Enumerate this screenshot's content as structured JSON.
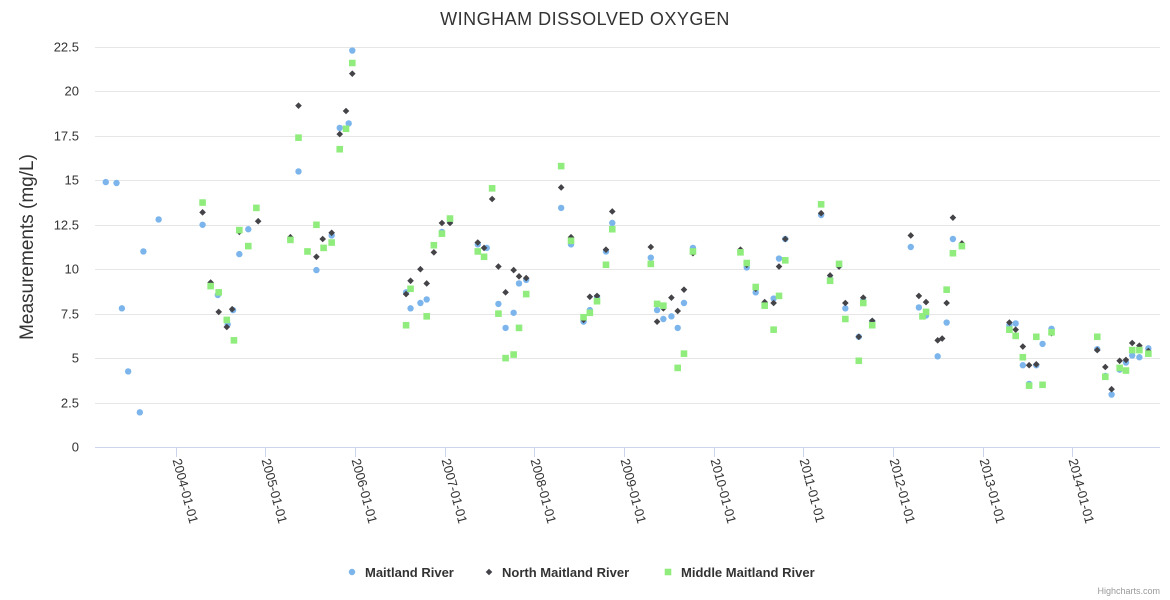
{
  "chart_data": {
    "type": "scatter",
    "title": "WINGHAM DISSOLVED OXYGEN",
    "ylabel": "Measurements (mg/L)",
    "xlabel": "",
    "ylim": [
      0,
      22.5
    ],
    "yticks": [
      0,
      2.5,
      5,
      7.5,
      10,
      12.5,
      15,
      17.5,
      20,
      22.5
    ],
    "ytick_labels": [
      "0",
      "2.5",
      "5",
      "7.5",
      "10",
      "12.5",
      "15",
      "17.5",
      "20",
      "22.5"
    ],
    "xlim": [
      2003.1,
      2014.98
    ],
    "xticks": [
      2004,
      2005,
      2006,
      2007,
      2008,
      2009,
      2010,
      2011,
      2012,
      2013,
      2014
    ],
    "xtick_labels": [
      "2004-01-01",
      "2005-01-01",
      "2006-01-01",
      "2007-01-01",
      "2008-01-01",
      "2009-01-01",
      "2010-01-01",
      "2011-01-01",
      "2012-01-01",
      "2013-01-01",
      "2014-01-01"
    ],
    "grid": true,
    "legend_position": "bottom-center",
    "series": [
      {
        "name": "Maitland River",
        "color": "#7cb5ec",
        "marker": "circle",
        "points": [
          [
            2003.22,
            14.9
          ],
          [
            2003.34,
            14.85
          ],
          [
            2003.4,
            7.8
          ],
          [
            2003.47,
            4.25
          ],
          [
            2003.6,
            1.95
          ],
          [
            2003.64,
            11.0
          ],
          [
            2003.81,
            12.8
          ],
          [
            2004.3,
            12.5
          ],
          [
            2004.47,
            8.55
          ],
          [
            2004.58,
            6.9
          ],
          [
            2004.64,
            7.7
          ],
          [
            2004.71,
            10.85
          ],
          [
            2004.81,
            12.25
          ],
          [
            2005.28,
            11.7
          ],
          [
            2005.37,
            15.5
          ],
          [
            2005.57,
            9.95
          ],
          [
            2005.74,
            11.9
          ],
          [
            2005.83,
            17.95
          ],
          [
            2005.93,
            18.2
          ],
          [
            2005.97,
            22.3
          ],
          [
            2006.57,
            8.7
          ],
          [
            2006.62,
            7.8
          ],
          [
            2006.73,
            8.1
          ],
          [
            2006.8,
            8.3
          ],
          [
            2006.97,
            12.1
          ],
          [
            2007.06,
            12.7
          ],
          [
            2007.37,
            11.4
          ],
          [
            2007.47,
            11.2
          ],
          [
            2007.6,
            8.05
          ],
          [
            2007.68,
            6.7
          ],
          [
            2007.77,
            7.55
          ],
          [
            2007.83,
            9.2
          ],
          [
            2007.91,
            9.4
          ],
          [
            2008.3,
            13.45
          ],
          [
            2008.41,
            11.4
          ],
          [
            2008.55,
            7.05
          ],
          [
            2008.62,
            7.7
          ],
          [
            2008.7,
            8.45
          ],
          [
            2008.8,
            11.0
          ],
          [
            2008.87,
            12.6
          ],
          [
            2009.3,
            10.65
          ],
          [
            2009.37,
            7.7
          ],
          [
            2009.44,
            7.2
          ],
          [
            2009.53,
            7.35
          ],
          [
            2009.6,
            6.7
          ],
          [
            2009.67,
            8.1
          ],
          [
            2009.77,
            11.2
          ],
          [
            2010.3,
            11.0
          ],
          [
            2010.37,
            10.1
          ],
          [
            2010.47,
            8.7
          ],
          [
            2010.57,
            8.0
          ],
          [
            2010.67,
            8.35
          ],
          [
            2010.73,
            10.6
          ],
          [
            2010.8,
            11.7
          ],
          [
            2011.2,
            13.05
          ],
          [
            2011.3,
            9.45
          ],
          [
            2011.4,
            10.2
          ],
          [
            2011.47,
            7.8
          ],
          [
            2011.62,
            6.2
          ],
          [
            2011.67,
            8.25
          ],
          [
            2011.77,
            7.05
          ],
          [
            2012.2,
            11.25
          ],
          [
            2012.29,
            7.85
          ],
          [
            2012.37,
            7.4
          ],
          [
            2012.5,
            5.1
          ],
          [
            2012.6,
            7.0
          ],
          [
            2012.67,
            11.7
          ],
          [
            2012.77,
            11.35
          ],
          [
            2013.3,
            6.85
          ],
          [
            2013.37,
            6.95
          ],
          [
            2013.45,
            4.6
          ],
          [
            2013.52,
            3.55
          ],
          [
            2013.6,
            4.6
          ],
          [
            2013.67,
            5.8
          ],
          [
            2013.77,
            6.65
          ],
          [
            2014.28,
            5.5
          ],
          [
            2014.37,
            4.0
          ],
          [
            2014.44,
            2.95
          ],
          [
            2014.53,
            4.35
          ],
          [
            2014.6,
            4.75
          ],
          [
            2014.67,
            5.15
          ],
          [
            2014.75,
            5.05
          ],
          [
            2014.85,
            5.55
          ]
        ]
      },
      {
        "name": "North Maitland River",
        "color": "#434348",
        "marker": "diamond",
        "points": [
          [
            2004.3,
            13.2
          ],
          [
            2004.39,
            9.25
          ],
          [
            2004.48,
            7.6
          ],
          [
            2004.57,
            6.75
          ],
          [
            2004.63,
            7.75
          ],
          [
            2004.71,
            12.1
          ],
          [
            2004.92,
            12.7
          ],
          [
            2005.28,
            11.8
          ],
          [
            2005.37,
            19.2
          ],
          [
            2005.57,
            10.7
          ],
          [
            2005.64,
            11.7
          ],
          [
            2005.74,
            12.05
          ],
          [
            2005.83,
            17.6
          ],
          [
            2005.9,
            18.9
          ],
          [
            2005.97,
            21.0
          ],
          [
            2006.57,
            8.6
          ],
          [
            2006.62,
            9.35
          ],
          [
            2006.73,
            10.0
          ],
          [
            2006.8,
            9.2
          ],
          [
            2006.88,
            10.95
          ],
          [
            2006.97,
            12.6
          ],
          [
            2007.06,
            12.6
          ],
          [
            2007.37,
            11.5
          ],
          [
            2007.44,
            11.2
          ],
          [
            2007.53,
            13.95
          ],
          [
            2007.6,
            10.15
          ],
          [
            2007.68,
            8.7
          ],
          [
            2007.77,
            9.95
          ],
          [
            2007.83,
            9.6
          ],
          [
            2007.91,
            9.5
          ],
          [
            2008.3,
            14.6
          ],
          [
            2008.41,
            11.8
          ],
          [
            2008.55,
            7.15
          ],
          [
            2008.62,
            8.45
          ],
          [
            2008.7,
            8.5
          ],
          [
            2008.8,
            11.1
          ],
          [
            2008.87,
            13.25
          ],
          [
            2009.3,
            11.25
          ],
          [
            2009.37,
            7.05
          ],
          [
            2009.44,
            7.8
          ],
          [
            2009.53,
            8.4
          ],
          [
            2009.6,
            7.65
          ],
          [
            2009.67,
            8.85
          ],
          [
            2009.77,
            10.9
          ],
          [
            2010.3,
            11.1
          ],
          [
            2010.37,
            10.25
          ],
          [
            2010.47,
            8.9
          ],
          [
            2010.57,
            8.15
          ],
          [
            2010.67,
            8.1
          ],
          [
            2010.73,
            10.15
          ],
          [
            2010.8,
            11.7
          ],
          [
            2011.2,
            13.15
          ],
          [
            2011.3,
            9.65
          ],
          [
            2011.4,
            10.15
          ],
          [
            2011.47,
            8.1
          ],
          [
            2011.62,
            6.2
          ],
          [
            2011.67,
            8.4
          ],
          [
            2011.77,
            7.1
          ],
          [
            2012.2,
            11.9
          ],
          [
            2012.29,
            8.5
          ],
          [
            2012.37,
            8.15
          ],
          [
            2012.5,
            6.0
          ],
          [
            2012.55,
            6.1
          ],
          [
            2012.6,
            8.1
          ],
          [
            2012.67,
            12.9
          ],
          [
            2012.77,
            11.45
          ],
          [
            2013.3,
            7.0
          ],
          [
            2013.37,
            6.6
          ],
          [
            2013.45,
            5.65
          ],
          [
            2013.52,
            4.6
          ],
          [
            2013.6,
            4.65
          ],
          [
            2013.77,
            6.4
          ],
          [
            2014.28,
            5.45
          ],
          [
            2014.37,
            4.5
          ],
          [
            2014.44,
            3.25
          ],
          [
            2014.53,
            4.85
          ],
          [
            2014.6,
            4.9
          ],
          [
            2014.67,
            5.85
          ],
          [
            2014.75,
            5.7
          ],
          [
            2014.85,
            5.4
          ]
        ]
      },
      {
        "name": "Middle Maitland River",
        "color": "#90ed7d",
        "marker": "square",
        "points": [
          [
            2004.3,
            13.75
          ],
          [
            2004.39,
            9.05
          ],
          [
            2004.48,
            8.7
          ],
          [
            2004.57,
            7.15
          ],
          [
            2004.65,
            6.0
          ],
          [
            2004.71,
            12.2
          ],
          [
            2004.81,
            11.3
          ],
          [
            2004.9,
            13.45
          ],
          [
            2005.28,
            11.65
          ],
          [
            2005.37,
            17.4
          ],
          [
            2005.47,
            11.0
          ],
          [
            2005.57,
            12.5
          ],
          [
            2005.65,
            11.2
          ],
          [
            2005.74,
            11.5
          ],
          [
            2005.83,
            16.75
          ],
          [
            2005.9,
            17.9
          ],
          [
            2005.97,
            21.6
          ],
          [
            2006.57,
            6.85
          ],
          [
            2006.62,
            8.9
          ],
          [
            2006.8,
            7.35
          ],
          [
            2006.88,
            11.35
          ],
          [
            2006.97,
            12.0
          ],
          [
            2007.06,
            12.85
          ],
          [
            2007.37,
            11.0
          ],
          [
            2007.44,
            10.7
          ],
          [
            2007.53,
            14.55
          ],
          [
            2007.6,
            7.5
          ],
          [
            2007.68,
            5.0
          ],
          [
            2007.77,
            5.2
          ],
          [
            2007.83,
            6.7
          ],
          [
            2007.91,
            8.6
          ],
          [
            2008.3,
            15.8
          ],
          [
            2008.41,
            11.6
          ],
          [
            2008.55,
            7.3
          ],
          [
            2008.62,
            7.55
          ],
          [
            2008.7,
            8.2
          ],
          [
            2008.8,
            10.25
          ],
          [
            2008.87,
            12.25
          ],
          [
            2009.3,
            10.3
          ],
          [
            2009.37,
            8.05
          ],
          [
            2009.44,
            7.95
          ],
          [
            2009.6,
            4.45
          ],
          [
            2009.67,
            5.25
          ],
          [
            2009.77,
            11.0
          ],
          [
            2010.3,
            10.95
          ],
          [
            2010.37,
            10.35
          ],
          [
            2010.47,
            9.0
          ],
          [
            2010.57,
            7.95
          ],
          [
            2010.67,
            6.6
          ],
          [
            2010.73,
            8.5
          ],
          [
            2010.8,
            10.5
          ],
          [
            2011.2,
            13.65
          ],
          [
            2011.3,
            9.35
          ],
          [
            2011.4,
            10.3
          ],
          [
            2011.47,
            7.2
          ],
          [
            2011.62,
            4.85
          ],
          [
            2011.67,
            8.1
          ],
          [
            2011.77,
            6.85
          ],
          [
            2012.33,
            7.35
          ],
          [
            2012.37,
            7.6
          ],
          [
            2012.6,
            8.85
          ],
          [
            2012.67,
            10.9
          ],
          [
            2012.77,
            11.3
          ],
          [
            2013.3,
            6.6
          ],
          [
            2013.37,
            6.25
          ],
          [
            2013.45,
            5.05
          ],
          [
            2013.52,
            3.45
          ],
          [
            2013.6,
            6.2
          ],
          [
            2013.67,
            3.5
          ],
          [
            2013.77,
            6.45
          ],
          [
            2014.28,
            6.2
          ],
          [
            2014.37,
            3.95
          ],
          [
            2014.53,
            4.45
          ],
          [
            2014.6,
            4.3
          ],
          [
            2014.67,
            5.45
          ],
          [
            2014.75,
            5.45
          ],
          [
            2014.85,
            5.25
          ]
        ]
      }
    ],
    "credits": "Highcharts.com"
  }
}
